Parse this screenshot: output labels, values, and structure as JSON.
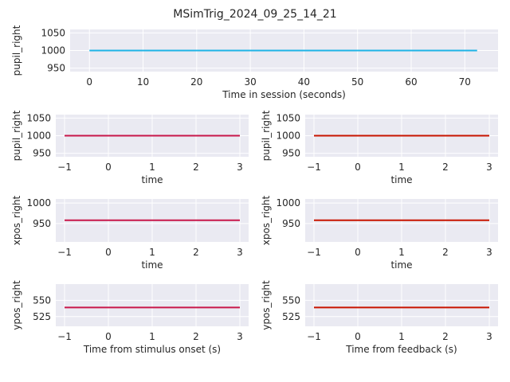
{
  "figure": {
    "title": "MSimTrig_2024_09_25_14_21"
  },
  "colors": {
    "background": "#eaeaf2",
    "grid": "#ffffff",
    "text": "#262626"
  },
  "chart_data": [
    {
      "id": "session",
      "type": "line",
      "xlabel": "Time in session (seconds)",
      "ylabel": "pupil_right",
      "xlim": [
        -3.6,
        76.2
      ],
      "ylim": [
        940,
        1060
      ],
      "xticks": [
        0,
        10,
        20,
        30,
        40,
        50,
        60,
        70
      ],
      "yticks": [
        950,
        1000,
        1050
      ],
      "grid": true,
      "series": [
        {
          "color": "#1fb4e6",
          "x": [
            0,
            72.3
          ],
          "y": [
            1000,
            1000
          ]
        }
      ]
    },
    {
      "id": "stim-pupil",
      "type": "line",
      "xlabel": "time",
      "ylabel": "pupil_right",
      "xlim": [
        -1.2,
        3.2
      ],
      "ylim": [
        940,
        1060
      ],
      "xticks": [
        -1,
        0,
        1,
        2,
        3
      ],
      "yticks": [
        950,
        1000,
        1050
      ],
      "grid": true,
      "series": [
        {
          "color": "#c8174a",
          "x": [
            -1,
            3
          ],
          "y": [
            1000,
            1000
          ]
        }
      ]
    },
    {
      "id": "fb-pupil",
      "type": "line",
      "xlabel": "time",
      "ylabel": "pupil_right",
      "xlim": [
        -1.2,
        3.2
      ],
      "ylim": [
        940,
        1060
      ],
      "xticks": [
        -1,
        0,
        1,
        2,
        3
      ],
      "yticks": [
        950,
        1000,
        1050
      ],
      "grid": true,
      "series": [
        {
          "color": "#c81400",
          "x": [
            -1,
            3
          ],
          "y": [
            1000,
            1000
          ]
        }
      ]
    },
    {
      "id": "stim-xpos",
      "type": "line",
      "xlabel": "time",
      "ylabel": "xpos_right",
      "xlim": [
        -1.2,
        3.2
      ],
      "ylim": [
        905,
        1010
      ],
      "xticks": [
        -1,
        0,
        1,
        2,
        3
      ],
      "yticks": [
        950,
        1000
      ],
      "grid": true,
      "series": [
        {
          "color": "#c8174a",
          "x": [
            -1,
            3
          ],
          "y": [
            958,
            958
          ]
        }
      ]
    },
    {
      "id": "fb-xpos",
      "type": "line",
      "xlabel": "time",
      "ylabel": "xpos_right",
      "xlim": [
        -1.2,
        3.2
      ],
      "ylim": [
        905,
        1010
      ],
      "xticks": [
        -1,
        0,
        1,
        2,
        3
      ],
      "yticks": [
        950,
        1000
      ],
      "grid": true,
      "series": [
        {
          "color": "#c81400",
          "x": [
            -1,
            3
          ],
          "y": [
            958,
            958
          ]
        }
      ]
    },
    {
      "id": "stim-ypos",
      "type": "line",
      "xlabel": "Time from stimulus onset (s)",
      "ylabel": "ypos_right",
      "xlim": [
        -1.2,
        3.2
      ],
      "ylim": [
        510,
        575
      ],
      "xticks": [
        -1,
        0,
        1,
        2,
        3
      ],
      "yticks": [
        525,
        550
      ],
      "grid": true,
      "series": [
        {
          "color": "#c8174a",
          "x": [
            -1,
            3
          ],
          "y": [
            539,
            539
          ]
        }
      ]
    },
    {
      "id": "fb-ypos",
      "type": "line",
      "xlabel": "Time from feedback (s)",
      "ylabel": "ypos_right",
      "xlim": [
        -1.2,
        3.2
      ],
      "ylim": [
        510,
        575
      ],
      "xticks": [
        -1,
        0,
        1,
        2,
        3
      ],
      "yticks": [
        525,
        550
      ],
      "grid": true,
      "series": [
        {
          "color": "#c81400",
          "x": [
            -1,
            3
          ],
          "y": [
            539,
            539
          ]
        }
      ]
    }
  ]
}
